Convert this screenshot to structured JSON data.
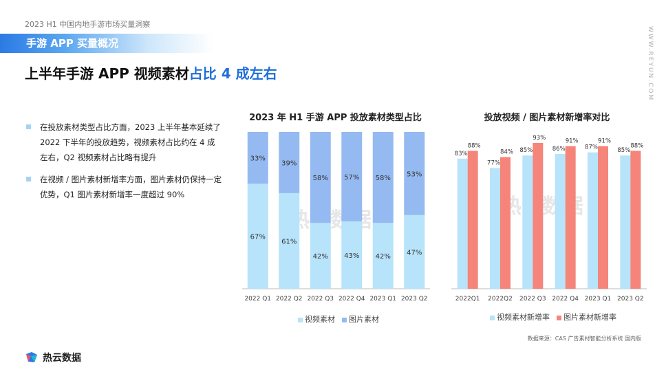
{
  "header": {
    "report_label": "2023 H1 中国内地手游市场买量洞察",
    "section_title": "手游 APP 买量概况",
    "headline_main": "上半年手游 APP 视频素材",
    "headline_highlight": "占比 4 成左右",
    "brand_url": "WWW.REYUN.COM"
  },
  "bullets": [
    "在投放素材类型占比方面，2023 上半年基本延续了 2022 下半年的投放趋势，视频素材占比约在 4 成左右，Q2 视频素材占比略有提升",
    "在视频 / 图片素材新增率方面，图片素材仍保持一定优势，Q1 图片素材新增率一度超过 90%"
  ],
  "colors": {
    "video": "#b7e3fb",
    "image_stack": "#95baf2",
    "video_new": "#b7e3fb",
    "image_new": "#f5847a",
    "accent": "#1f6fd6"
  },
  "chart_data": [
    {
      "type": "bar",
      "stacked": true,
      "title": "2023 年 H1 手游 APP 投放素材类型占比",
      "categories": [
        "2022 Q1",
        "2022 Q2",
        "2022 Q3",
        "2022 Q4",
        "2023 Q1",
        "2023 Q2"
      ],
      "series": [
        {
          "name": "视频素材",
          "values": [
            67,
            61,
            42,
            43,
            42,
            47
          ],
          "labels": [
            "67%",
            "61%",
            "42%",
            "43%",
            "42%",
            "47%"
          ]
        },
        {
          "name": "图片素材",
          "values": [
            33,
            39,
            58,
            57,
            58,
            53
          ],
          "labels": [
            "33%",
            "39%",
            "58%",
            "57%",
            "58%",
            "53%"
          ]
        }
      ],
      "ylim": [
        0,
        100
      ],
      "legend_position": "bottom"
    },
    {
      "type": "bar",
      "title": "投放视频 / 图片素材新增率对比",
      "categories": [
        "2022Q1",
        "2022Q2",
        "2022 Q3",
        "2022 Q4",
        "2023 Q1",
        "2023 Q2"
      ],
      "series": [
        {
          "name": "视频素材新增率",
          "values": [
            83,
            77,
            85,
            86,
            87,
            85
          ],
          "labels": [
            "83%",
            "77%",
            "85%",
            "86%",
            "87%",
            "85%"
          ]
        },
        {
          "name": "图片素材新增率",
          "values": [
            88,
            84,
            93,
            91,
            91,
            88
          ],
          "labels": [
            "88%",
            "84%",
            "93%",
            "91%",
            "91%",
            "88%"
          ]
        }
      ],
      "legend_position": "bottom"
    }
  ],
  "watermark": "热云数据",
  "source": "数据来源：CAS 广告素材智能分析系统 国内版",
  "logo_text": "热云数据"
}
